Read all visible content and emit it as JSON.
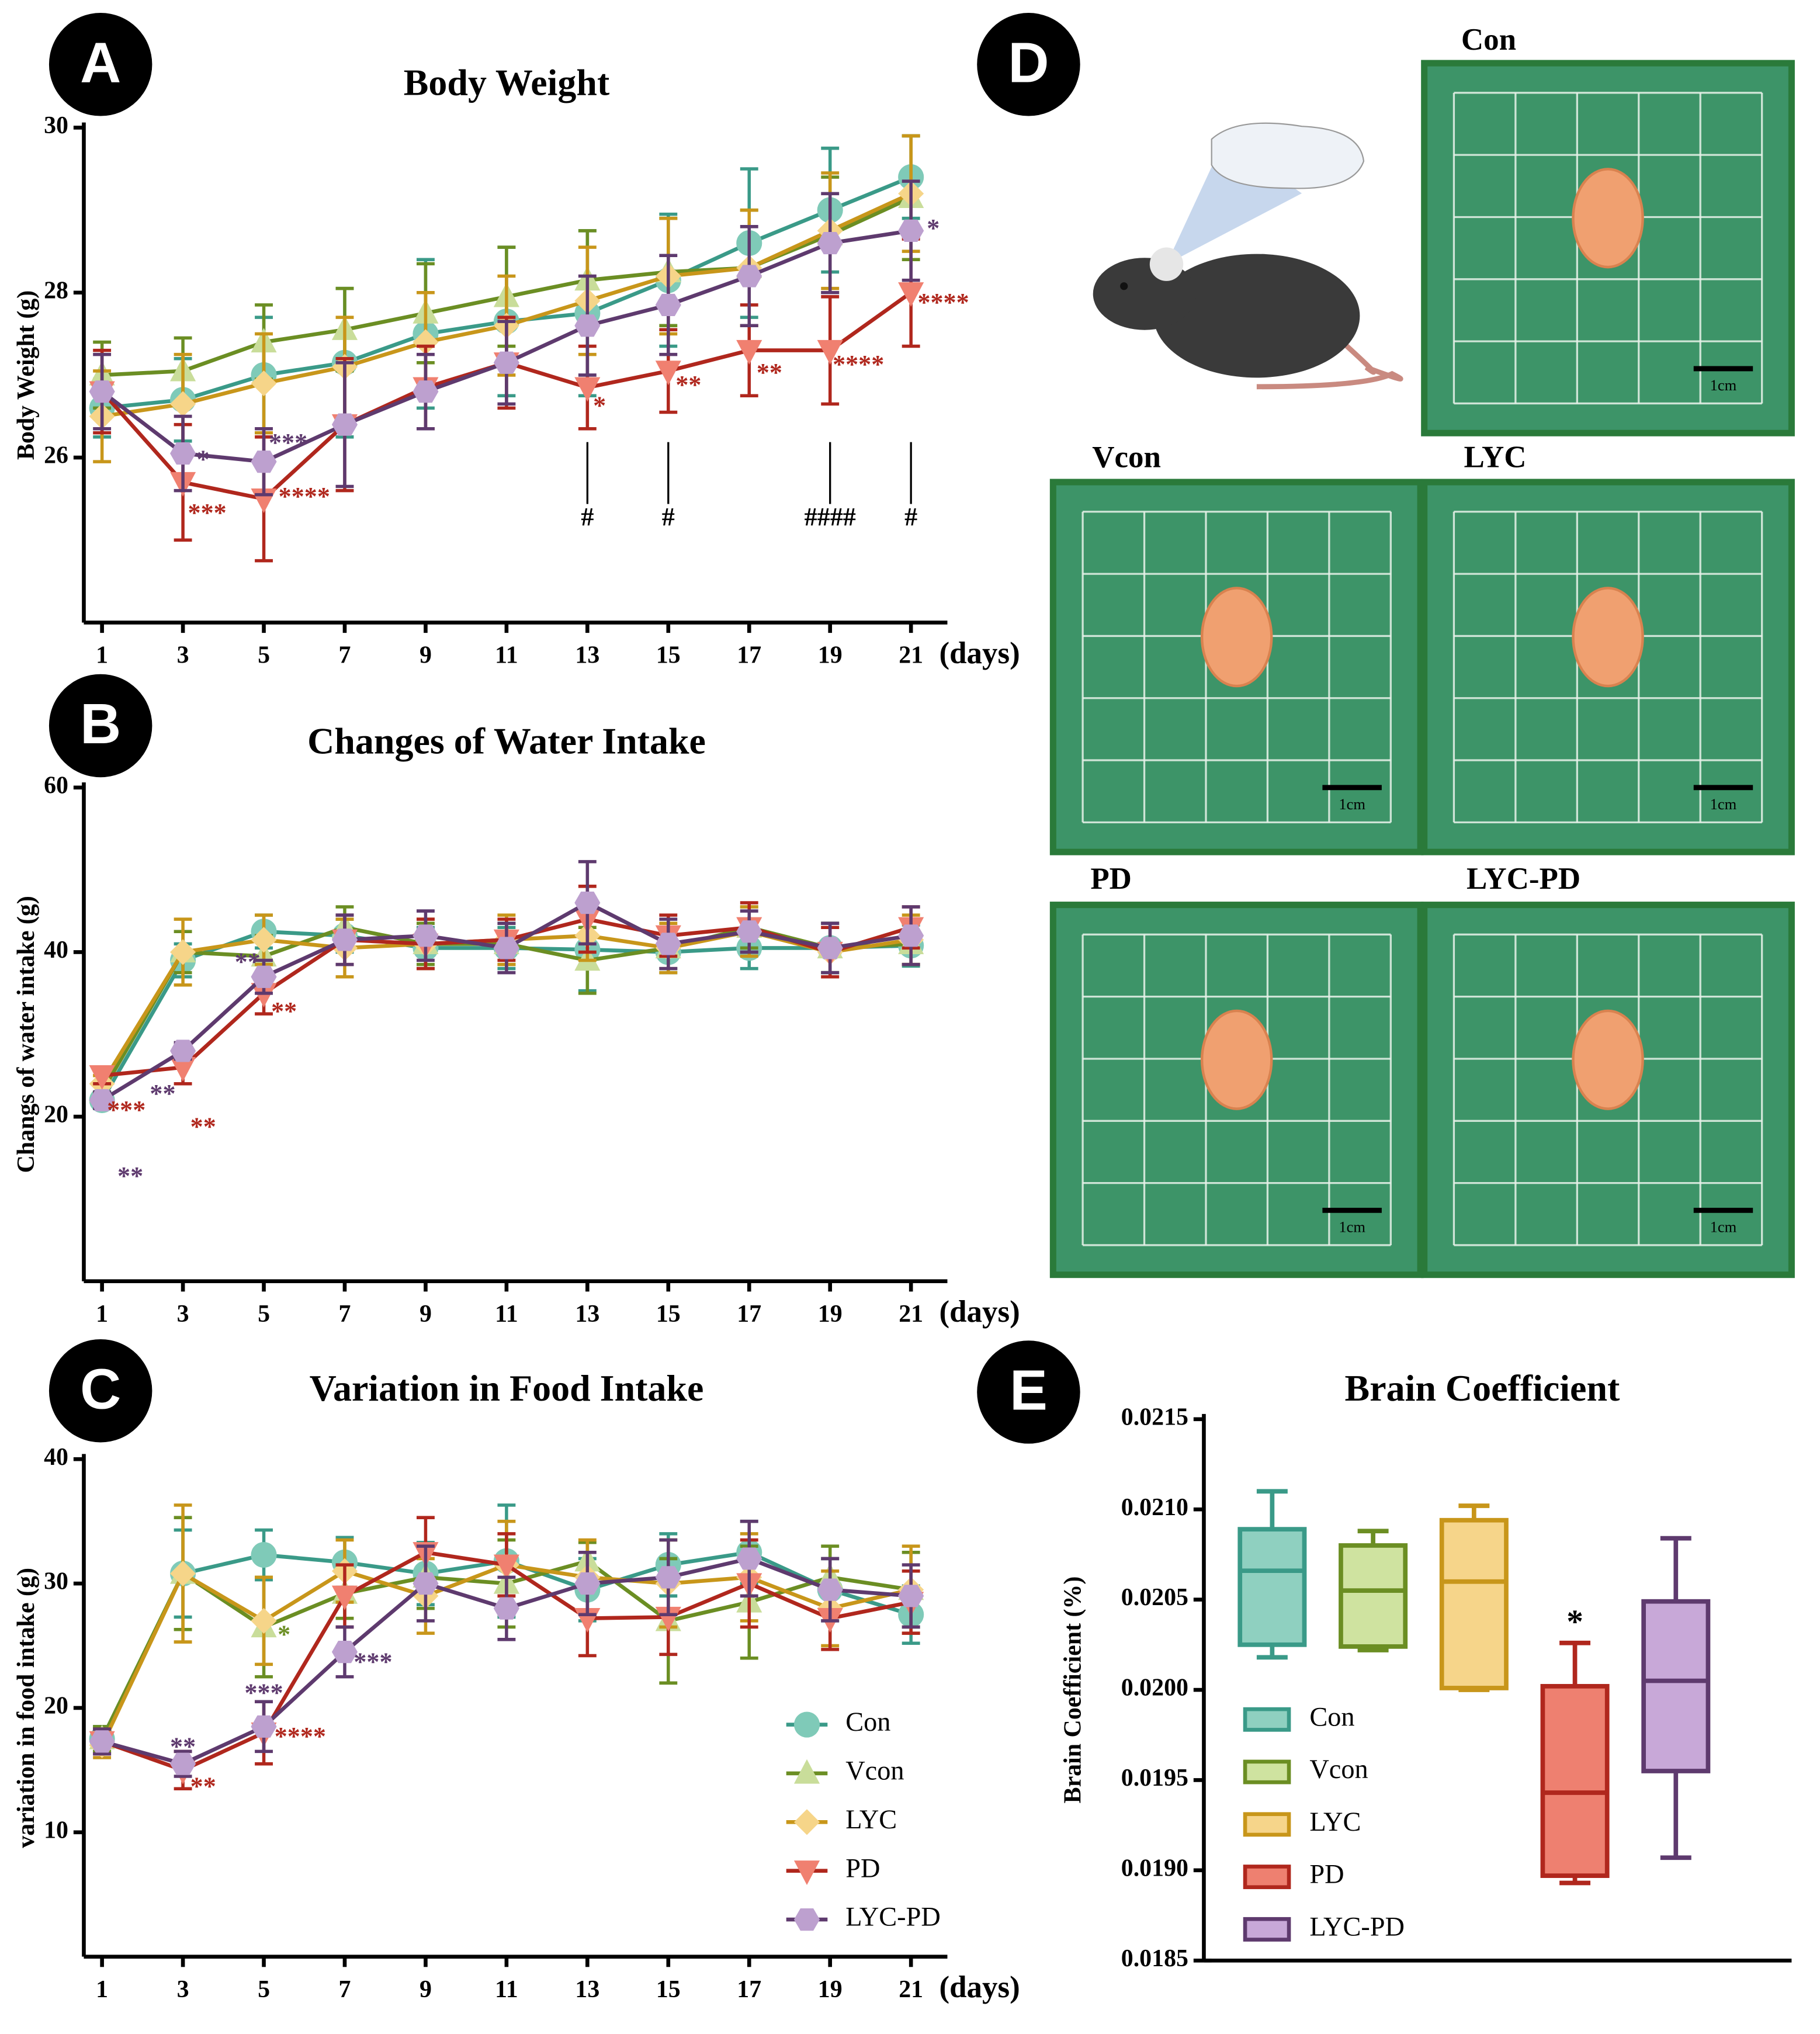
{
  "chart_data": [
    {
      "type": "line",
      "title": "Body Weight",
      "ylabel": "Body Weight (g)",
      "xlabel": "(days)",
      "x": [
        1,
        3,
        5,
        7,
        9,
        11,
        13,
        15,
        17,
        19,
        21
      ],
      "xlim": [
        0.55,
        21.9
      ],
      "xticks": [
        1,
        3,
        5,
        7,
        9,
        11,
        13,
        15,
        17,
        19,
        21
      ],
      "ylim": [
        24,
        30
      ],
      "yticks": [
        26,
        28,
        30
      ],
      "legend": false,
      "series": [
        {
          "name": "Con",
          "color": "#3a9a88",
          "marker": "circle",
          "marker_color": "#7fcab8",
          "values": [
            26.6,
            26.7,
            27.0,
            27.15,
            27.5,
            27.65,
            27.75,
            28.15,
            28.6,
            29.0,
            29.4
          ],
          "errors": [
            0.35,
            0.5,
            0.7,
            0.9,
            0.9,
            0.9,
            1.0,
            0.8,
            0.9,
            0.75,
            0.5
          ]
        },
        {
          "name": "Vcon",
          "color": "#6b8e23",
          "marker": "triangle-up",
          "marker_color": "#c9dd9a",
          "values": [
            27.0,
            27.05,
            27.4,
            27.55,
            27.75,
            27.95,
            28.15,
            28.25,
            28.3,
            28.7,
            29.15
          ],
          "errors": [
            0.4,
            0.4,
            0.45,
            0.5,
            0.6,
            0.6,
            0.6,
            0.65,
            0.7,
            0.7,
            0.75
          ]
        },
        {
          "name": "LYC",
          "color": "#c8961a",
          "marker": "diamond",
          "marker_color": "#f6d589",
          "values": [
            26.5,
            26.65,
            26.9,
            27.1,
            27.4,
            27.6,
            27.9,
            28.2,
            28.3,
            28.75,
            29.2
          ],
          "errors": [
            0.55,
            0.6,
            0.6,
            0.6,
            0.6,
            0.6,
            0.65,
            0.7,
            0.7,
            0.7,
            0.7
          ]
        },
        {
          "name": "PD",
          "color": "#b0271d",
          "marker": "triangle-down",
          "marker_color": "#f08070",
          "values": [
            26.8,
            25.7,
            25.5,
            26.4,
            26.85,
            27.15,
            26.85,
            27.05,
            27.3,
            27.3,
            28.0
          ],
          "errors": [
            0.5,
            0.7,
            0.75,
            0.8,
            0.5,
            0.55,
            0.5,
            0.5,
            0.55,
            0.65,
            0.65
          ]
        },
        {
          "name": "LYC-PD",
          "color": "#5e3a6e",
          "marker": "hexagon",
          "marker_color": "#bda0cf",
          "values": [
            26.8,
            26.05,
            25.95,
            26.4,
            26.8,
            27.15,
            27.6,
            27.85,
            28.2,
            28.6,
            28.75
          ],
          "errors": [
            0.45,
            0.45,
            0.4,
            0.75,
            0.45,
            0.5,
            0.6,
            0.6,
            0.6,
            0.6,
            0.6
          ]
        }
      ],
      "annotations": [
        {
          "text": "*",
          "x": 3.5,
          "y": 25.95,
          "color": "#5e3a6e"
        },
        {
          "text": "***",
          "x": 3.6,
          "y": 25.3,
          "color": "#b0271d"
        },
        {
          "text": "***",
          "x": 5.6,
          "y": 26.15,
          "color": "#5e3a6e"
        },
        {
          "text": "****",
          "x": 6.0,
          "y": 25.5,
          "color": "#b0271d"
        },
        {
          "text": "*",
          "x": 13.3,
          "y": 26.6,
          "color": "#b0271d"
        },
        {
          "text": "**",
          "x": 15.5,
          "y": 26.85,
          "color": "#b0271d"
        },
        {
          "text": "**",
          "x": 17.5,
          "y": 27.0,
          "color": "#b0271d"
        },
        {
          "text": "****",
          "x": 19.7,
          "y": 27.1,
          "color": "#b0271d"
        },
        {
          "text": "****",
          "x": 21.8,
          "y": 27.85,
          "color": "#b0271d"
        },
        {
          "text": "*",
          "x": 21.55,
          "y": 28.75,
          "color": "#5e3a6e"
        },
        {
          "text": "#",
          "x": 13,
          "y": 25.25,
          "color": "#000",
          "leader": true
        },
        {
          "text": "#",
          "x": 15,
          "y": 25.25,
          "color": "#000",
          "leader": true
        },
        {
          "text": "####",
          "x": 19,
          "y": 25.25,
          "color": "#000",
          "leader": true
        },
        {
          "text": "#",
          "x": 21,
          "y": 25.25,
          "color": "#000",
          "leader": true
        }
      ]
    },
    {
      "type": "line",
      "title": "Changes of Water Intake",
      "ylabel": "Changs of water intake (g)",
      "xlabel": "(days)",
      "x": [
        1,
        3,
        5,
        7,
        9,
        11,
        13,
        15,
        17,
        19,
        21
      ],
      "xlim": [
        0.55,
        21.9
      ],
      "xticks": [
        1,
        3,
        5,
        7,
        9,
        11,
        13,
        15,
        17,
        19,
        21
      ],
      "ylim": [
        0,
        60
      ],
      "yticks": [
        20,
        40,
        60
      ],
      "legend": false,
      "series": [
        {
          "name": "Con",
          "color": "#3a9a88",
          "marker": "circle",
          "marker_color": "#7fcab8",
          "values": [
            22,
            39,
            42.5,
            42,
            40.5,
            40.5,
            40.3,
            40,
            40.5,
            40.5,
            40.8
          ],
          "errors": [
            1,
            2,
            2,
            2,
            2.5,
            2.5,
            5,
            2.5,
            2.5,
            3,
            2.5
          ]
        },
        {
          "name": "Vcon",
          "color": "#6b8e23",
          "marker": "triangle-up",
          "marker_color": "#c9dd9a",
          "values": [
            23,
            40,
            39.5,
            43,
            41,
            41,
            39,
            40.5,
            43,
            40.5,
            41
          ],
          "errors": [
            1,
            2.5,
            2.5,
            2.5,
            2.5,
            2.5,
            4,
            2.5,
            2.5,
            3,
            2.5
          ]
        },
        {
          "name": "LYC",
          "color": "#c8961a",
          "marker": "diamond",
          "marker_color": "#f6d589",
          "values": [
            24,
            40,
            41.5,
            40.5,
            41,
            41.5,
            42,
            40.5,
            42.5,
            40,
            41.5
          ],
          "errors": [
            1,
            4,
            3,
            3.5,
            3,
            3,
            3,
            3,
            3,
            3,
            3
          ]
        },
        {
          "name": "PD",
          "color": "#b0271d",
          "marker": "triangle-down",
          "marker_color": "#f08070",
          "values": [
            25,
            26,
            35,
            41.5,
            41,
            41.5,
            44,
            42,
            43,
            40,
            43
          ],
          "errors": [
            1,
            2,
            2.5,
            3,
            3,
            2.5,
            4,
            2.5,
            3,
            3,
            2.5
          ]
        },
        {
          "name": "LYC-PD",
          "color": "#5e3a6e",
          "marker": "hexagon",
          "marker_color": "#bda0cf",
          "values": [
            22,
            28,
            37,
            41.5,
            42,
            40.5,
            46,
            41,
            42.5,
            40.5,
            42
          ],
          "errors": [
            1,
            1,
            2,
            3,
            3,
            3,
            5,
            3,
            2.5,
            3,
            3.5
          ]
        }
      ],
      "annotations": [
        {
          "text": "***",
          "x": 1.6,
          "y": 20.5,
          "color": "#b0271d"
        },
        {
          "text": "**",
          "x": 2.5,
          "y": 22.5,
          "color": "#5e3a6e"
        },
        {
          "text": "**",
          "x": 3.5,
          "y": 18.5,
          "color": "#b0271d"
        },
        {
          "text": "**",
          "x": 1.7,
          "y": 12.5,
          "color": "#5e3a6e"
        },
        {
          "text": "**",
          "x": 4.6,
          "y": 38.5,
          "color": "#5e3a6e"
        },
        {
          "text": "**",
          "x": 5.5,
          "y": 32.5,
          "color": "#b0271d"
        }
      ]
    },
    {
      "type": "line",
      "title": "Variation in Food Intake",
      "ylabel": "variation in food intake (g)",
      "xlabel": "(days)",
      "x": [
        1,
        3,
        5,
        7,
        9,
        11,
        13,
        15,
        17,
        19,
        21
      ],
      "xlim": [
        0.55,
        21.9
      ],
      "xticks": [
        1,
        3,
        5,
        7,
        9,
        11,
        13,
        15,
        17,
        19,
        21
      ],
      "ylim": [
        0,
        40
      ],
      "yticks": [
        10,
        20,
        30,
        40
      ],
      "legend": true,
      "legend_position": "lower right",
      "series": [
        {
          "name": "Con",
          "color": "#3a9a88",
          "marker": "circle",
          "marker_color": "#7fcab8",
          "values": [
            17.5,
            30.8,
            32.3,
            31.7,
            30.8,
            31.8,
            29.5,
            31.5,
            32.5,
            29.5,
            27.5
          ],
          "errors": [
            1,
            3.5,
            2,
            2,
            2.5,
            4.5,
            2.5,
            2.5,
            2.5,
            2.5,
            2.3
          ]
        },
        {
          "name": "Vcon",
          "color": "#6b8e23",
          "marker": "triangle-up",
          "marker_color": "#c9dd9a",
          "values": [
            17.5,
            30.8,
            26.5,
            29.2,
            30.5,
            30,
            31.8,
            27,
            28.5,
            30.5,
            29.5
          ],
          "errors": [
            1,
            4.5,
            4,
            2,
            2.5,
            3.5,
            1.5,
            5,
            4.5,
            2.5,
            3
          ]
        },
        {
          "name": "LYC",
          "color": "#c8961a",
          "marker": "diamond",
          "marker_color": "#f6d589",
          "values": [
            17,
            30.8,
            27,
            31,
            29,
            31.5,
            30.5,
            30,
            30.5,
            28,
            29.5
          ],
          "errors": [
            1,
            5.5,
            3.5,
            2.5,
            3,
            3.5,
            3,
            3.5,
            3.5,
            3,
            3.5
          ]
        },
        {
          "name": "PD",
          "color": "#b0271d",
          "marker": "triangle-down",
          "marker_color": "#f08070",
          "values": [
            17.3,
            15,
            18,
            29,
            32.5,
            31.5,
            27.2,
            27.3,
            30,
            27.2,
            28.5
          ],
          "errors": [
            1,
            1.5,
            2.5,
            2.5,
            2.8,
            2.5,
            3,
            3,
            3.5,
            2.5,
            2.5
          ]
        },
        {
          "name": "LYC-PD",
          "color": "#5e3a6e",
          "marker": "hexagon",
          "marker_color": "#bda0cf",
          "values": [
            17.3,
            15.5,
            18.5,
            24.5,
            30,
            28,
            30,
            30.5,
            32,
            29.5,
            29
          ],
          "errors": [
            1,
            1,
            2,
            2,
            3,
            2.5,
            2.5,
            3,
            3,
            2.5,
            2.5
          ]
        }
      ],
      "annotations": [
        {
          "text": "**",
          "x": 3,
          "y": 16.7,
          "color": "#5e3a6e"
        },
        {
          "text": "**",
          "x": 3.5,
          "y": 13.5,
          "color": "#b0271d"
        },
        {
          "text": "***",
          "x": 5,
          "y": 21,
          "color": "#5e3a6e"
        },
        {
          "text": "****",
          "x": 5.9,
          "y": 17.5,
          "color": "#b0271d"
        },
        {
          "text": "*",
          "x": 5.5,
          "y": 25.7,
          "color": "#6b8e23"
        },
        {
          "text": "***",
          "x": 7.7,
          "y": 23.5,
          "color": "#5e3a6e"
        }
      ]
    },
    {
      "type": "box",
      "title": "Brain Coefficient",
      "ylabel": "Brain Coefficient (%)",
      "ylim": [
        0.0185,
        0.0215
      ],
      "yticks": [
        0.0185,
        {
          "value": 0.019,
          "label": "0.0190"
        },
        0.0195,
        {
          "value": 0.02,
          "label": "0.0200"
        },
        0.0205,
        {
          "value": 0.021,
          "label": "0.0210"
        },
        0.0215
      ],
      "legend": true,
      "legend_position": "center left",
      "series": [
        {
          "name": "Con",
          "color": "#3a9a88",
          "fill": "#8fd0c0",
          "min": 0.02018,
          "q1": 0.02025,
          "median": 0.02066,
          "q3": 0.02089,
          "max": 0.0211
        },
        {
          "name": "Vcon",
          "color": "#6b8e23",
          "fill": "#cfe3a0",
          "min": 0.02022,
          "q1": 0.02024,
          "median": 0.02055,
          "q3": 0.0208,
          "max": 0.02088
        },
        {
          "name": "LYC",
          "color": "#c8961a",
          "fill": "#f6d58a",
          "min": 0.02,
          "q1": 0.02001,
          "median": 0.0206,
          "q3": 0.02094,
          "max": 0.02102
        },
        {
          "name": "PD",
          "color": "#b0271d",
          "fill": "#ee8070",
          "min": 0.01893,
          "q1": 0.01897,
          "median": 0.01943,
          "q3": 0.02002,
          "max": 0.02026
        },
        {
          "name": "LYC-PD",
          "color": "#5e3a6e",
          "fill": "#c8a8d8",
          "min": 0.01907,
          "q1": 0.01955,
          "median": 0.02005,
          "q3": 0.02049,
          "max": 0.02084
        }
      ],
      "annotations": [
        {
          "text": "*",
          "x": 3,
          "y": 0.02036,
          "color": "#000"
        }
      ]
    }
  ],
  "panel_labels": [
    "A",
    "B",
    "C",
    "D",
    "E"
  ],
  "brain_photos": {
    "groups": [
      "Con",
      "Vcon",
      "LYC",
      "PD",
      "LYC-PD"
    ],
    "scale_label": "1cm"
  }
}
